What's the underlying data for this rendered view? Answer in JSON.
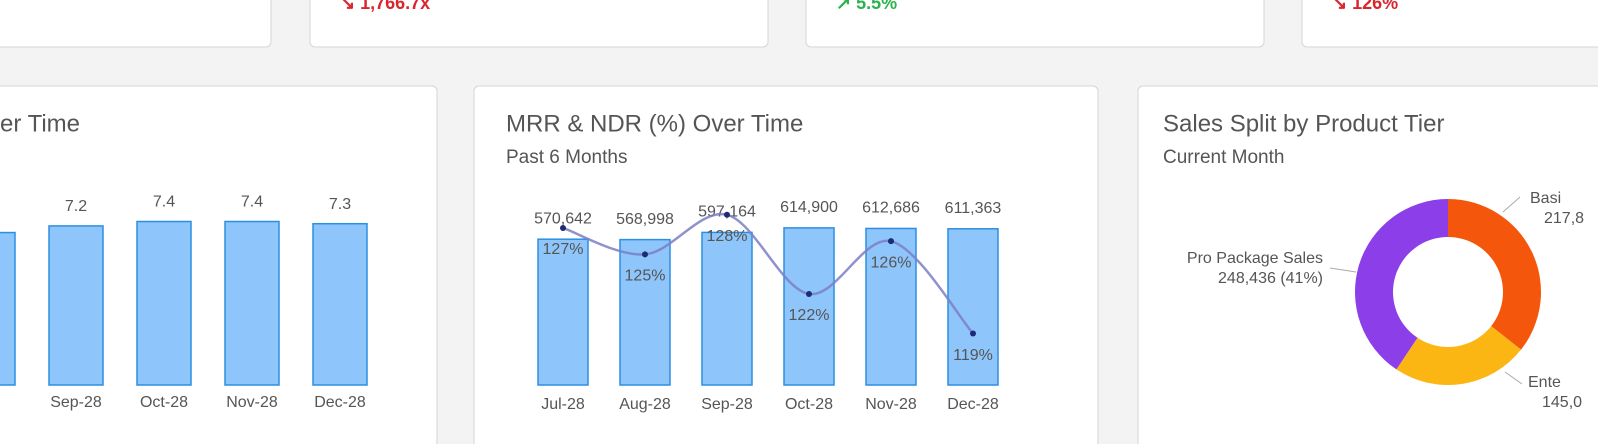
{
  "kpi_cards": [
    {
      "value": "↘ 1,766.7x",
      "trend": "down"
    },
    {
      "value": "↗ 5.5%",
      "trend": "up"
    },
    {
      "value": "↘ 126%",
      "trend": "down"
    }
  ],
  "chart_data": [
    {
      "type": "bar",
      "title": "er Time",
      "categories": [
        null,
        "Sep-28",
        "Oct-28",
        "Nov-28",
        "Dec-28"
      ],
      "values": [
        6.9,
        7.2,
        7.4,
        7.4,
        7.3
      ],
      "color": "#8ec5fb",
      "ylim": [
        0,
        8.6
      ]
    },
    {
      "type": "bar_line",
      "title": "MRR & NDR (%) Over Time",
      "subtitle": "Past 6 Months",
      "categories": [
        "Jul-28",
        "Aug-28",
        "Sep-28",
        "Oct-28",
        "Nov-28",
        "Dec-28"
      ],
      "series": [
        {
          "type": "bar",
          "color": "#8ec5fb",
          "values": [
            570642,
            568998,
            597164,
            614900,
            612686,
            611363
          ],
          "value_labels": [
            "570,642",
            "568,998",
            "597,164",
            "614,900",
            "612,686",
            "611,363"
          ]
        },
        {
          "type": "line",
          "axis": "y2",
          "color": "#7d7fc6",
          "values": [
            127,
            125,
            128,
            122,
            126,
            119
          ],
          "value_labels": [
            "127%",
            "125%",
            "128%",
            "122%",
            "126%",
            "119%"
          ]
        }
      ],
      "ylim": [
        0,
        743600
      ],
      "y2lim": [
        115.1,
        129.5
      ]
    },
    {
      "type": "donut",
      "title": "Sales Split by Product Tier",
      "subtitle": "Current Month",
      "categories": [
        "Basi",
        "Ente",
        "Pro Package Sales"
      ],
      "values": [
        217800,
        145000,
        248436
      ],
      "value_labels": [
        "217,8",
        "145,0",
        "248,436 (41%)"
      ],
      "colors": [
        "#f4560b",
        "#fbb614",
        "#8c3ee8"
      ]
    }
  ]
}
